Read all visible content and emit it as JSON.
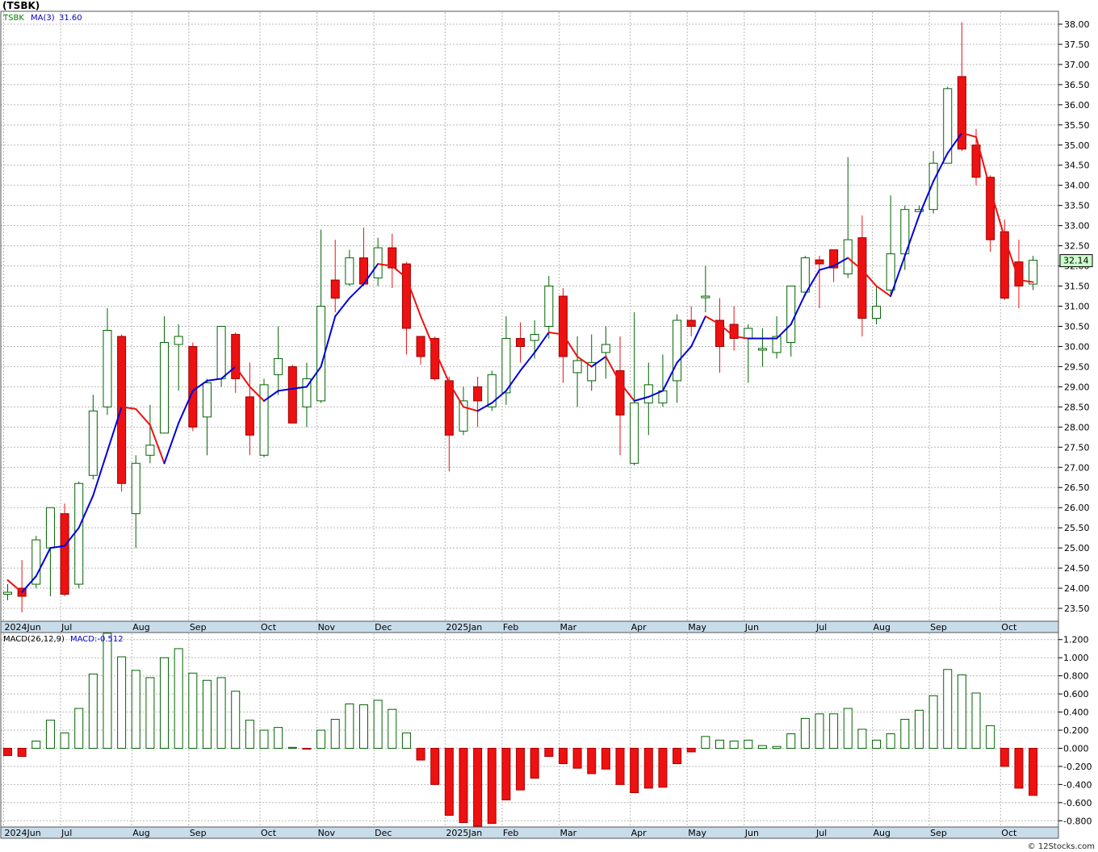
{
  "title": "(TSBK)",
  "copyright": "© 12Stocks.com",
  "colors": {
    "up": "#006400",
    "down": "#ee1111",
    "ma_up": "#0000dd",
    "ma_down": "#ee1111",
    "grid": "#b8b8b8",
    "axis_band": "#c8dcea",
    "price_box": "#ccffcc"
  },
  "price_panel": {
    "legend": [
      {
        "text": "TSBK",
        "color": "#008000"
      },
      {
        "text": "MA(3)",
        "color": "#0000cc"
      },
      {
        "text": "31.60",
        "color": "#0000cc"
      }
    ],
    "last_price": "32.14"
  },
  "macd_panel": {
    "legend": [
      {
        "text": "MACD(26,12,9)",
        "color": "#000000"
      },
      {
        "text": "MACD:-0.512",
        "color": "#0000cc"
      }
    ]
  },
  "chart_data": {
    "type": "candlestick",
    "interval": "weekly",
    "price_ylim": [
      23.2,
      38.3
    ],
    "price_ticks": [
      "23.50",
      "24.00",
      "24.50",
      "25.00",
      "25.50",
      "26.00",
      "26.50",
      "27.00",
      "27.50",
      "28.00",
      "28.50",
      "29.00",
      "29.50",
      "30.00",
      "30.50",
      "31.00",
      "31.50",
      "32.00",
      "32.50",
      "33.00",
      "33.50",
      "34.00",
      "34.50",
      "35.00",
      "35.50",
      "36.00",
      "36.50",
      "37.00",
      "37.50",
      "38.00"
    ],
    "macd_ylim": [
      -0.86,
      1.26
    ],
    "macd_ticks": [
      "1.200",
      "1.000",
      "0.800",
      "0.600",
      "0.400",
      "0.200",
      "0.000",
      "-0.200",
      "-0.400",
      "-0.600",
      "-0.800"
    ],
    "month_labels": [
      {
        "label": "2024Jun",
        "bar": 0
      },
      {
        "label": "Jul",
        "bar": 4
      },
      {
        "label": "Aug",
        "bar": 9
      },
      {
        "label": "Sep",
        "bar": 13
      },
      {
        "label": "Oct",
        "bar": 18
      },
      {
        "label": "Nov",
        "bar": 22
      },
      {
        "label": "Dec",
        "bar": 26
      },
      {
        "label": "2025Jan",
        "bar": 31
      },
      {
        "label": "Feb",
        "bar": 35
      },
      {
        "label": "Mar",
        "bar": 39
      },
      {
        "label": "Apr",
        "bar": 44
      },
      {
        "label": "May",
        "bar": 48
      },
      {
        "label": "Jun",
        "bar": 52
      },
      {
        "label": "Jul",
        "bar": 57
      },
      {
        "label": "Aug",
        "bar": 61
      },
      {
        "label": "Sep",
        "bar": 65
      },
      {
        "label": "Oct",
        "bar": 70
      }
    ],
    "candles": [
      {
        "o": 23.85,
        "h": 24.1,
        "l": 23.7,
        "c": 23.9
      },
      {
        "o": 24.0,
        "h": 24.7,
        "l": 23.4,
        "c": 23.8
      },
      {
        "o": 24.1,
        "h": 25.3,
        "l": 24.0,
        "c": 25.2
      },
      {
        "o": 25.0,
        "h": 26.0,
        "l": 23.8,
        "c": 26.0
      },
      {
        "o": 25.85,
        "h": 26.1,
        "l": 23.8,
        "c": 23.85
      },
      {
        "o": 24.1,
        "h": 26.65,
        "l": 24.0,
        "c": 26.6
      },
      {
        "o": 26.8,
        "h": 28.8,
        "l": 26.7,
        "c": 28.4
      },
      {
        "o": 28.5,
        "h": 30.95,
        "l": 28.3,
        "c": 30.4
      },
      {
        "o": 30.25,
        "h": 30.3,
        "l": 26.4,
        "c": 26.6
      },
      {
        "o": 25.85,
        "h": 27.3,
        "l": 25.0,
        "c": 27.1
      },
      {
        "o": 27.3,
        "h": 28.55,
        "l": 27.1,
        "c": 27.55
      },
      {
        "o": 27.85,
        "h": 30.75,
        "l": 27.85,
        "c": 30.1
      },
      {
        "o": 30.05,
        "h": 30.55,
        "l": 28.9,
        "c": 30.25
      },
      {
        "o": 30.0,
        "h": 30.1,
        "l": 27.9,
        "c": 28.0
      },
      {
        "o": 28.25,
        "h": 29.2,
        "l": 27.3,
        "c": 29.1
      },
      {
        "o": 29.2,
        "h": 30.5,
        "l": 29.0,
        "c": 30.5
      },
      {
        "o": 30.3,
        "h": 30.35,
        "l": 28.85,
        "c": 29.2
      },
      {
        "o": 28.75,
        "h": 29.6,
        "l": 27.3,
        "c": 27.8
      },
      {
        "o": 27.3,
        "h": 29.2,
        "l": 27.25,
        "c": 29.05
      },
      {
        "o": 29.3,
        "h": 30.5,
        "l": 28.8,
        "c": 29.7
      },
      {
        "o": 29.5,
        "h": 29.55,
        "l": 28.1,
        "c": 28.1
      },
      {
        "o": 28.5,
        "h": 29.6,
        "l": 28.0,
        "c": 29.2
      },
      {
        "o": 28.65,
        "h": 32.9,
        "l": 28.6,
        "c": 31.0
      },
      {
        "o": 31.65,
        "h": 32.65,
        "l": 30.85,
        "c": 31.2
      },
      {
        "o": 31.55,
        "h": 32.4,
        "l": 31.5,
        "c": 32.2
      },
      {
        "o": 32.2,
        "h": 32.95,
        "l": 31.5,
        "c": 31.55
      },
      {
        "o": 31.7,
        "h": 32.7,
        "l": 31.5,
        "c": 32.45
      },
      {
        "o": 32.45,
        "h": 32.8,
        "l": 31.45,
        "c": 31.95
      },
      {
        "o": 32.05,
        "h": 32.1,
        "l": 29.8,
        "c": 30.45
      },
      {
        "o": 30.25,
        "h": 30.25,
        "l": 29.55,
        "c": 29.75
      },
      {
        "o": 30.2,
        "h": 30.25,
        "l": 29.15,
        "c": 29.2
      },
      {
        "o": 29.15,
        "h": 29.25,
        "l": 26.9,
        "c": 27.8
      },
      {
        "o": 27.9,
        "h": 29.0,
        "l": 27.8,
        "c": 28.65
      },
      {
        "o": 29.0,
        "h": 29.25,
        "l": 28.0,
        "c": 28.65
      },
      {
        "o": 28.5,
        "h": 29.4,
        "l": 28.4,
        "c": 29.3
      },
      {
        "o": 28.85,
        "h": 30.75,
        "l": 28.55,
        "c": 30.2
      },
      {
        "o": 30.2,
        "h": 30.6,
        "l": 29.6,
        "c": 30.0
      },
      {
        "o": 30.15,
        "h": 30.65,
        "l": 29.7,
        "c": 30.3
      },
      {
        "o": 30.5,
        "h": 31.75,
        "l": 30.2,
        "c": 31.5
      },
      {
        "o": 31.25,
        "h": 31.45,
        "l": 29.1,
        "c": 29.75
      },
      {
        "o": 29.35,
        "h": 30.25,
        "l": 28.5,
        "c": 29.65
      },
      {
        "o": 29.15,
        "h": 30.3,
        "l": 28.9,
        "c": 29.6
      },
      {
        "o": 29.85,
        "h": 30.5,
        "l": 29.2,
        "c": 30.05
      },
      {
        "o": 29.4,
        "h": 30.25,
        "l": 27.3,
        "c": 28.3
      },
      {
        "o": 27.1,
        "h": 30.85,
        "l": 27.05,
        "c": 28.6
      },
      {
        "o": 28.6,
        "h": 29.6,
        "l": 27.8,
        "c": 29.05
      },
      {
        "o": 28.6,
        "h": 29.8,
        "l": 28.5,
        "c": 28.9
      },
      {
        "o": 29.15,
        "h": 30.8,
        "l": 28.6,
        "c": 30.65
      },
      {
        "o": 30.65,
        "h": 31.0,
        "l": 30.25,
        "c": 30.5
      },
      {
        "o": 31.25,
        "h": 32.0,
        "l": 30.85,
        "c": 31.25
      },
      {
        "o": 30.65,
        "h": 31.2,
        "l": 29.35,
        "c": 30.0
      },
      {
        "o": 30.55,
        "h": 31.0,
        "l": 29.9,
        "c": 30.2
      },
      {
        "o": 30.2,
        "h": 30.55,
        "l": 29.1,
        "c": 30.45
      },
      {
        "o": 29.95,
        "h": 30.45,
        "l": 29.5,
        "c": 29.95
      },
      {
        "o": 29.85,
        "h": 30.75,
        "l": 29.7,
        "c": 30.25
      },
      {
        "o": 30.1,
        "h": 31.5,
        "l": 29.75,
        "c": 31.5
      },
      {
        "o": 31.35,
        "h": 32.25,
        "l": 31.25,
        "c": 32.2
      },
      {
        "o": 32.15,
        "h": 32.25,
        "l": 30.95,
        "c": 32.05
      },
      {
        "o": 32.4,
        "h": 32.4,
        "l": 31.6,
        "c": 31.95
      },
      {
        "o": 31.8,
        "h": 34.7,
        "l": 31.7,
        "c": 32.65
      },
      {
        "o": 32.7,
        "h": 33.25,
        "l": 30.25,
        "c": 30.7
      },
      {
        "o": 30.7,
        "h": 31.5,
        "l": 30.55,
        "c": 31.0
      },
      {
        "o": 31.4,
        "h": 33.75,
        "l": 31.3,
        "c": 32.3
      },
      {
        "o": 32.3,
        "h": 33.5,
        "l": 31.9,
        "c": 33.4
      },
      {
        "o": 33.35,
        "h": 33.5,
        "l": 33.35,
        "c": 33.4
      },
      {
        "o": 33.4,
        "h": 34.85,
        "l": 33.3,
        "c": 34.55
      },
      {
        "o": 34.55,
        "h": 36.45,
        "l": 34.55,
        "c": 36.4
      },
      {
        "o": 36.7,
        "h": 38.05,
        "l": 34.85,
        "c": 34.9
      },
      {
        "o": 35.0,
        "h": 35.4,
        "l": 34.0,
        "c": 34.2
      },
      {
        "o": 34.2,
        "h": 34.25,
        "l": 32.35,
        "c": 32.65
      },
      {
        "o": 32.85,
        "h": 33.15,
        "l": 31.15,
        "c": 31.2
      },
      {
        "o": 32.1,
        "h": 32.65,
        "l": 30.95,
        "c": 31.5
      },
      {
        "o": 31.55,
        "h": 32.25,
        "l": 31.4,
        "c": 32.14
      }
    ],
    "ma3": [
      24.2,
      23.9,
      24.3,
      25.0,
      25.05,
      25.5,
      26.3,
      27.4,
      28.5,
      28.45,
      28.05,
      27.1,
      28.1,
      28.9,
      29.15,
      29.2,
      29.5,
      29.0,
      28.65,
      28.9,
      28.95,
      29.0,
      29.5,
      30.75,
      31.2,
      31.55,
      32.05,
      32.0,
      31.7,
      30.75,
      29.9,
      29.1,
      28.5,
      28.4,
      28.6,
      28.9,
      29.4,
      29.85,
      30.35,
      30.3,
      29.75,
      29.5,
      29.75,
      29.1,
      28.65,
      28.75,
      28.9,
      29.6,
      30.0,
      30.75,
      30.55,
      30.25,
      30.2,
      30.2,
      30.2,
      30.55,
      31.3,
      31.9,
      32.0,
      32.2,
      31.9,
      31.5,
      31.25,
      32.25,
      33.25,
      34.1,
      34.8,
      35.3,
      35.2,
      33.9,
      32.7,
      31.65,
      31.6
    ],
    "macd_hist": [
      -0.08,
      -0.09,
      0.08,
      0.31,
      0.17,
      0.44,
      0.82,
      1.27,
      1.01,
      0.86,
      0.78,
      1.0,
      1.1,
      0.83,
      0.75,
      0.78,
      0.63,
      0.31,
      0.2,
      0.23,
      0.01,
      -0.01,
      0.2,
      0.32,
      0.49,
      0.48,
      0.53,
      0.43,
      0.17,
      -0.13,
      -0.4,
      -0.74,
      -0.82,
      -0.86,
      -0.83,
      -0.57,
      -0.46,
      -0.33,
      -0.09,
      -0.17,
      -0.22,
      -0.28,
      -0.23,
      -0.4,
      -0.49,
      -0.44,
      -0.43,
      -0.17,
      -0.04,
      0.13,
      0.09,
      0.08,
      0.09,
      0.03,
      0.02,
      0.16,
      0.33,
      0.38,
      0.38,
      0.44,
      0.21,
      0.09,
      0.16,
      0.32,
      0.42,
      0.58,
      0.87,
      0.81,
      0.61,
      0.25,
      -0.2,
      -0.44,
      -0.52
    ]
  }
}
